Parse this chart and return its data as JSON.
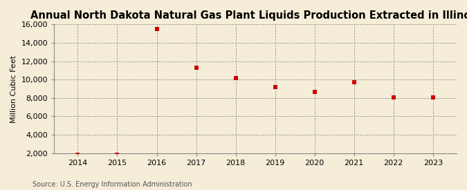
{
  "title": "Annual North Dakota Natural Gas Plant Liquids Production Extracted in Illinois",
  "ylabel": "Million Cubic Feet",
  "source": "Source: U.S. Energy Information Administration",
  "years": [
    2014,
    2015,
    2016,
    2017,
    2018,
    2019,
    2020,
    2021,
    2022,
    2023
  ],
  "values": [
    1800,
    1850,
    15500,
    11300,
    10200,
    9200,
    8700,
    9700,
    8100,
    8100
  ],
  "ylim": [
    2000,
    16000
  ],
  "yticks": [
    2000,
    4000,
    6000,
    8000,
    10000,
    12000,
    14000,
    16000
  ],
  "xlim": [
    2013.4,
    2023.6
  ],
  "xticks": [
    2014,
    2015,
    2016,
    2017,
    2018,
    2019,
    2020,
    2021,
    2022,
    2023
  ],
  "marker_color": "#cc0000",
  "marker": "s",
  "marker_size": 4,
  "bg_color": "#f5edd8",
  "grid_color": "#999999",
  "title_fontsize": 10.5,
  "label_fontsize": 8,
  "tick_fontsize": 8,
  "source_fontsize": 7
}
